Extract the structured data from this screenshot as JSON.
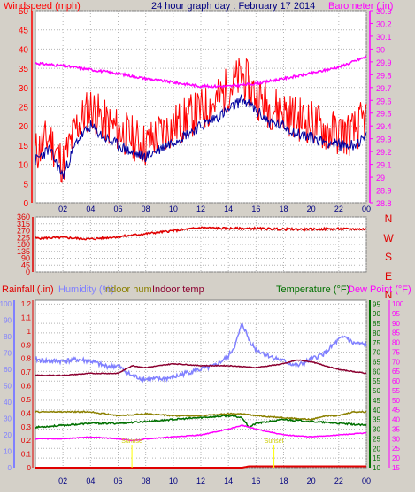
{
  "page": {
    "title": "24 hour graph day : February 17 2014"
  },
  "colors": {
    "background": "#d4d0c8",
    "plot": "#ffffff",
    "grid": "#b4b4b4",
    "windspeed": "#ff0000",
    "windavg": "#0000a0",
    "barometer": "#ff00ff",
    "winddir": "#e00000",
    "rainfall": "#e00000",
    "humidity": "#8080ff",
    "indoor_hum": "#8b8000",
    "indoor_temp": "#8b0030",
    "temperature": "#007000",
    "dew_point": "#ff00ff",
    "title": "#000080"
  },
  "chart_data": [
    {
      "id": "wind-baro",
      "type": "line",
      "title": "24 hour graph day : February 17 2014",
      "ylabel": "Windspeed (mph)",
      "ylabel_right": "Barometer (.in)",
      "x_ticks": [
        "02",
        "04",
        "06",
        "08",
        "10",
        "12",
        "14",
        "16",
        "18",
        "20",
        "22",
        "00"
      ],
      "ylim": [
        0,
        50
      ],
      "y_ticks": [
        0,
        5,
        10,
        15,
        20,
        25,
        30,
        35,
        40,
        45,
        50
      ],
      "ylim_right": [
        28.8,
        30.3
      ],
      "y_ticks_right": [
        28.8,
        28.9,
        29,
        29.1,
        29.2,
        29.3,
        29.4,
        29.5,
        29.6,
        29.7,
        29.8,
        29.9,
        30,
        30.1,
        30.2,
        30.3
      ],
      "grid": true,
      "series": [
        {
          "key": "windspeed",
          "axis": "left",
          "x": [
            0,
            1,
            2,
            3,
            4,
            5,
            6,
            7,
            8,
            9,
            10,
            11,
            12,
            13,
            14,
            15,
            16,
            17,
            18,
            19,
            20,
            21,
            22,
            23,
            24
          ],
          "values": [
            13,
            17,
            10,
            20,
            25,
            21,
            19,
            17,
            15,
            18,
            20,
            22,
            24,
            26,
            30,
            33,
            28,
            25,
            24,
            22,
            21,
            19,
            18,
            18,
            22
          ]
        },
        {
          "key": "windavg",
          "axis": "left",
          "x": [
            0,
            1,
            2,
            3,
            4,
            5,
            6,
            7,
            8,
            9,
            10,
            11,
            12,
            13,
            14,
            15,
            16,
            17,
            18,
            19,
            20,
            21,
            22,
            23,
            24
          ],
          "values": [
            11,
            14,
            7,
            16,
            20,
            17,
            15,
            13,
            12,
            14,
            16,
            18,
            20,
            22,
            24,
            27,
            24,
            21,
            20,
            18,
            17,
            16,
            15,
            15,
            17
          ]
        },
        {
          "key": "barometer",
          "axis": "right",
          "x": [
            0,
            2,
            4,
            6,
            8,
            10,
            12,
            14,
            16,
            18,
            20,
            22,
            24
          ],
          "values": [
            29.89,
            29.87,
            29.84,
            29.81,
            29.77,
            29.74,
            29.71,
            29.71,
            29.73,
            29.77,
            29.81,
            29.86,
            29.94
          ]
        }
      ]
    },
    {
      "id": "wind-dir",
      "type": "line",
      "y_ticks": [
        0,
        45,
        90,
        135,
        180,
        225,
        270,
        315,
        360
      ],
      "ylim": [
        0,
        360
      ],
      "compass": [
        "N",
        "W",
        "S",
        "E",
        "N"
      ],
      "series": [
        {
          "key": "winddir",
          "x": [
            0,
            2,
            4,
            6,
            8,
            10,
            12,
            14,
            16,
            18,
            20,
            22,
            24
          ],
          "values": [
            220,
            225,
            215,
            230,
            250,
            270,
            290,
            285,
            285,
            280,
            280,
            282,
            280
          ]
        }
      ]
    },
    {
      "id": "temp-hum",
      "type": "line",
      "label_rain": "Rainfall (.in)",
      "label_humidity": "Humidity (%)",
      "label_indoor_hum": "Indoor hum",
      "label_indoor_temp": "Indoor temp",
      "label_temperature": "Temperature (°F)",
      "label_dewpoint": "Dew Point (°F)",
      "rain_ticks": [
        0,
        0.1,
        0.2,
        0.3,
        0.4,
        0.5,
        0.6,
        0.7,
        0.8,
        0.9,
        1,
        1.1,
        1.2
      ],
      "humidity_ticks": [
        0,
        10,
        20,
        30,
        40,
        50,
        60,
        70,
        80,
        90,
        100
      ],
      "temp_ticks": [
        10,
        15,
        20,
        25,
        30,
        35,
        40,
        45,
        50,
        55,
        60,
        65,
        70,
        75,
        80,
        85,
        90,
        95
      ],
      "dew_ticks": [
        15,
        20,
        25,
        30,
        35,
        40,
        45,
        50,
        55,
        60,
        65,
        70,
        75,
        80,
        85,
        90,
        95,
        100
      ],
      "annotations": [
        "Sunrise",
        "Sunset"
      ],
      "ylim_temp": [
        10,
        97
      ],
      "series": [
        {
          "key": "humidity",
          "x": [
            0,
            1,
            2,
            3,
            4,
            5,
            6,
            7,
            8,
            9,
            10,
            11,
            12,
            13,
            14,
            14.5,
            15,
            15.5,
            16,
            17,
            18,
            19,
            20,
            21,
            22,
            22.5,
            23,
            24
          ],
          "values": [
            66,
            65,
            65,
            66,
            65,
            62,
            62,
            56,
            54,
            54,
            55,
            58,
            60,
            62,
            68,
            75,
            88,
            78,
            72,
            68,
            65,
            62,
            66,
            70,
            78,
            80,
            76,
            75
          ]
        },
        {
          "key": "indoor_temp",
          "x": [
            0,
            2,
            4,
            6,
            7,
            8,
            10,
            12,
            14,
            16,
            18,
            19,
            20,
            21,
            22,
            24
          ],
          "values": [
            58,
            58,
            59,
            59,
            63,
            62,
            64,
            63,
            63,
            62,
            64,
            66,
            65,
            63,
            61,
            59
          ]
        },
        {
          "key": "indoor_hum",
          "x": [
            0,
            2,
            4,
            6,
            8,
            10,
            12,
            14,
            15,
            16,
            18,
            20,
            21,
            22,
            23,
            24
          ],
          "values": [
            39,
            39,
            39,
            37,
            38,
            37,
            37,
            38,
            38,
            37,
            36,
            35,
            37,
            37,
            39,
            39
          ]
        },
        {
          "key": "temperature",
          "x": [
            0,
            2,
            4,
            6,
            8,
            10,
            12,
            14,
            15,
            15.5,
            16,
            18,
            20,
            22,
            24
          ],
          "values": [
            31,
            32,
            33,
            33,
            34,
            35,
            36,
            37,
            36,
            31,
            33,
            35,
            34,
            33,
            32
          ]
        },
        {
          "key": "dew_point",
          "x": [
            0,
            2,
            4,
            6,
            7,
            8,
            10,
            12,
            14,
            15,
            16,
            18,
            20,
            22,
            24
          ],
          "values": [
            25,
            25,
            26,
            25,
            24,
            25,
            26,
            27,
            30,
            32,
            30,
            27,
            26,
            27,
            28
          ]
        },
        {
          "key": "rainfall",
          "x": [
            0,
            15,
            15.5,
            24
          ],
          "values": [
            0,
            0,
            0.01,
            0.01
          ]
        }
      ]
    }
  ]
}
